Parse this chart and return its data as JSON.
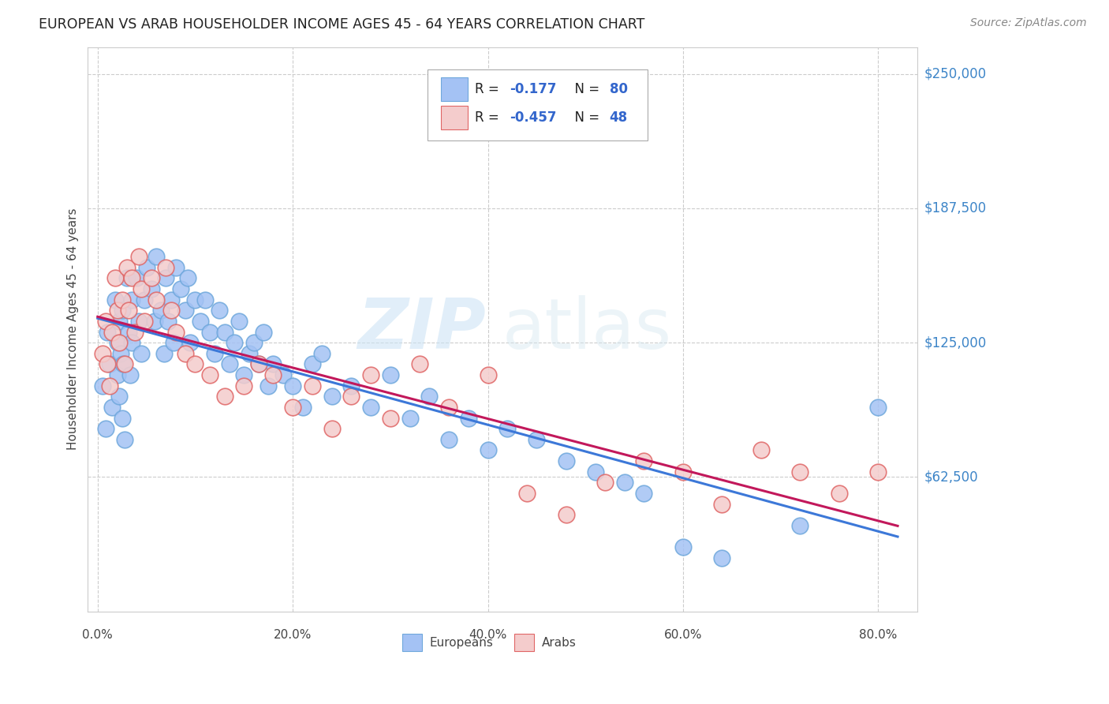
{
  "title": "EUROPEAN VS ARAB HOUSEHOLDER INCOME AGES 45 - 64 YEARS CORRELATION CHART",
  "source": "Source: ZipAtlas.com",
  "ylabel": "Householder Income Ages 45 - 64 years",
  "xlabel_ticks": [
    "0.0%",
    "20.0%",
    "40.0%",
    "60.0%",
    "80.0%"
  ],
  "xlabel_vals": [
    0.0,
    0.2,
    0.4,
    0.6,
    0.8
  ],
  "ytick_labels": [
    "$62,500",
    "$125,000",
    "$187,500",
    "$250,000"
  ],
  "ytick_vals": [
    62500,
    125000,
    187500,
    250000
  ],
  "ymin": 0,
  "ymax": 262500,
  "xmin": -0.01,
  "xmax": 0.84,
  "european_color": "#a4c2f4",
  "european_edge": "#6fa8dc",
  "arab_color": "#f4cccc",
  "arab_edge": "#e06666",
  "european_R": -0.177,
  "european_N": 80,
  "arab_R": -0.457,
  "arab_N": 48,
  "watermark_zip": "ZIP",
  "watermark_atlas": "atlas",
  "legend_label_european": "Europeans",
  "legend_label_arab": "Arabs",
  "background_color": "#ffffff",
  "grid_color": "#cccccc",
  "line_color_european": "#3c78d8",
  "line_color_arab": "#c2185b",
  "europeans_x": [
    0.005,
    0.008,
    0.01,
    0.012,
    0.015,
    0.018,
    0.02,
    0.02,
    0.022,
    0.022,
    0.024,
    0.025,
    0.025,
    0.026,
    0.028,
    0.03,
    0.032,
    0.033,
    0.035,
    0.035,
    0.04,
    0.042,
    0.045,
    0.048,
    0.05,
    0.055,
    0.058,
    0.06,
    0.065,
    0.068,
    0.07,
    0.072,
    0.075,
    0.078,
    0.08,
    0.085,
    0.09,
    0.092,
    0.095,
    0.1,
    0.105,
    0.11,
    0.115,
    0.12,
    0.125,
    0.13,
    0.135,
    0.14,
    0.145,
    0.15,
    0.155,
    0.16,
    0.165,
    0.17,
    0.175,
    0.18,
    0.19,
    0.2,
    0.21,
    0.22,
    0.23,
    0.24,
    0.26,
    0.28,
    0.3,
    0.32,
    0.34,
    0.36,
    0.38,
    0.4,
    0.42,
    0.45,
    0.48,
    0.51,
    0.54,
    0.56,
    0.6,
    0.64,
    0.72,
    0.8
  ],
  "europeans_y": [
    105000,
    85000,
    130000,
    115000,
    95000,
    145000,
    125000,
    110000,
    135000,
    100000,
    120000,
    140000,
    90000,
    115000,
    80000,
    155000,
    130000,
    110000,
    145000,
    125000,
    155000,
    135000,
    120000,
    145000,
    160000,
    150000,
    135000,
    165000,
    140000,
    120000,
    155000,
    135000,
    145000,
    125000,
    160000,
    150000,
    140000,
    155000,
    125000,
    145000,
    135000,
    145000,
    130000,
    120000,
    140000,
    130000,
    115000,
    125000,
    135000,
    110000,
    120000,
    125000,
    115000,
    130000,
    105000,
    115000,
    110000,
    105000,
    95000,
    115000,
    120000,
    100000,
    105000,
    95000,
    110000,
    90000,
    100000,
    80000,
    90000,
    75000,
    85000,
    80000,
    70000,
    65000,
    60000,
    55000,
    30000,
    25000,
    40000,
    95000
  ],
  "arabs_x": [
    0.005,
    0.008,
    0.01,
    0.012,
    0.015,
    0.018,
    0.02,
    0.022,
    0.025,
    0.028,
    0.03,
    0.032,
    0.035,
    0.038,
    0.042,
    0.045,
    0.048,
    0.055,
    0.06,
    0.07,
    0.075,
    0.08,
    0.09,
    0.1,
    0.115,
    0.13,
    0.15,
    0.165,
    0.18,
    0.2,
    0.22,
    0.24,
    0.26,
    0.28,
    0.3,
    0.33,
    0.36,
    0.4,
    0.44,
    0.48,
    0.52,
    0.56,
    0.6,
    0.64,
    0.68,
    0.72,
    0.76,
    0.8
  ],
  "arabs_y": [
    120000,
    135000,
    115000,
    105000,
    130000,
    155000,
    140000,
    125000,
    145000,
    115000,
    160000,
    140000,
    155000,
    130000,
    165000,
    150000,
    135000,
    155000,
    145000,
    160000,
    140000,
    130000,
    120000,
    115000,
    110000,
    100000,
    105000,
    115000,
    110000,
    95000,
    105000,
    85000,
    100000,
    110000,
    90000,
    115000,
    95000,
    110000,
    55000,
    45000,
    60000,
    70000,
    65000,
    50000,
    75000,
    65000,
    55000,
    65000
  ]
}
